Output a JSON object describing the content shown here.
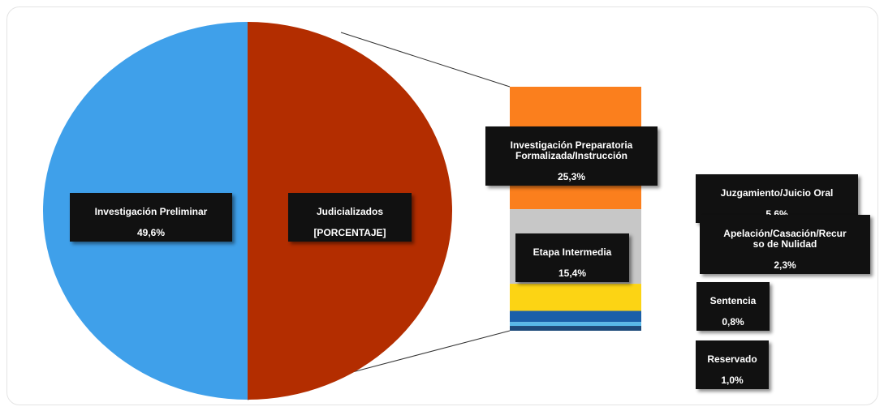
{
  "chart_data": [
    {
      "type": "pie",
      "slices": [
        {
          "label": "Investigación Preliminar",
          "value": 49.6,
          "value_text": "49,6%",
          "color": "#3fa0ea"
        },
        {
          "label": "Judicializados",
          "value": 50.4,
          "value_text": "[PORCENTAJE]",
          "color": "#b32d00"
        }
      ],
      "title": ""
    },
    {
      "type": "bar",
      "stacked": true,
      "categories": [
        "Judicializados"
      ],
      "series": [
        {
          "name": "Investigación Preparatoria Formalizada/Instrucción",
          "value": 25.3,
          "value_text": "25,3%",
          "color": "#fb7f1d"
        },
        {
          "name": "Etapa Intermedia",
          "value": 15.4,
          "value_text": "15,4%",
          "color": "#c7c7c7"
        },
        {
          "name": "Juzgamiento/Juicio Oral",
          "value": 5.6,
          "value_text": "5,6%",
          "color": "#fcd414"
        },
        {
          "name": "Apelación/Casación/Recurso de Nulidad",
          "value": 2.3,
          "value_text": "2,3%",
          "color": "#1a5fa9"
        },
        {
          "name": "Sentencia",
          "value": 0.8,
          "value_text": "0,8%",
          "color": "#58b8e8"
        },
        {
          "name": "Reservado",
          "value": 1.0,
          "value_text": "1,0%",
          "color": "#1e4a7a"
        }
      ]
    }
  ],
  "labels": {
    "preliminar": {
      "name": "Investigación Preliminar",
      "value": "49,6%"
    },
    "judicializados": {
      "name": "Judicializados",
      "value": "[PORCENTAJE]"
    },
    "preparatoria": {
      "name": "Investigación Preparatoria\nFormalizada/Instrucción",
      "value": "25,3%"
    },
    "intermedia": {
      "name": "Etapa Intermedia",
      "value": "15,4%"
    },
    "juzgamiento": {
      "name": "Juzgamiento/Juicio Oral",
      "value": "5,6%"
    },
    "apelacion": {
      "name": "Apelación/Casación/Recur\nso de Nulidad",
      "value": "2,3%"
    },
    "sentencia": {
      "name": "Sentencia",
      "value": "0,8%"
    },
    "reservado": {
      "name": "Reservado",
      "value": "1,0%"
    }
  }
}
